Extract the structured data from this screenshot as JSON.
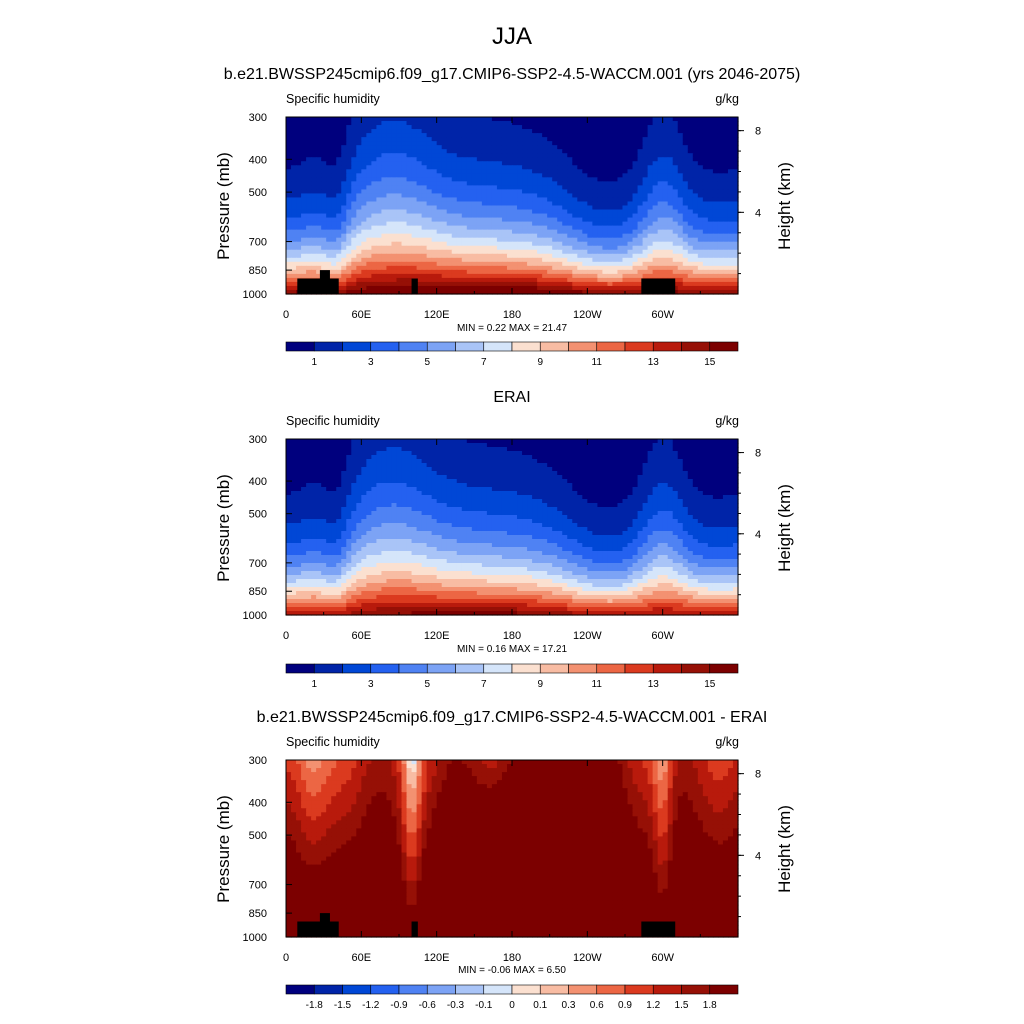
{
  "figure": {
    "title": "JJA"
  },
  "chart_data": [
    {
      "type": "heatmap",
      "title": "b.e21.BWSSP245cmip6.f09_g17.CMIP6-SSP2-4.5-WACCM.001 (yrs 2046-2075)",
      "variable": "Specific humidity",
      "units": "g/kg",
      "xlabel": "",
      "ylabel": "Pressure (mb)",
      "ylabel_right": "Height (km)",
      "x_ticks": [
        "0",
        "60E",
        "120E",
        "180",
        "120W",
        "60W"
      ],
      "x_tick_values": [
        0,
        60,
        120,
        180,
        240,
        300
      ],
      "xlim": [
        0,
        360
      ],
      "y_ticks": [
        "300",
        "400",
        "500",
        "700",
        "850",
        "1000"
      ],
      "y_tick_values": [
        300,
        400,
        500,
        700,
        850,
        1000
      ],
      "ylim": [
        1000,
        300
      ],
      "height_ticks": [
        "8",
        "4"
      ],
      "height_tick_values": [
        8,
        4
      ],
      "stats": "MIN =   0.22  MAX =  21.47",
      "levels": [
        1,
        2,
        3,
        4,
        5,
        6,
        7,
        8,
        9,
        10,
        11,
        12,
        13,
        14,
        15
      ],
      "colorbar_labels": [
        "1",
        "3",
        "5",
        "7",
        "9",
        "11",
        "13",
        "15"
      ],
      "has_terrain": true,
      "field_scale": 1.0
    },
    {
      "type": "heatmap",
      "title": "ERAI",
      "variable": "Specific humidity",
      "units": "g/kg",
      "xlabel": "",
      "ylabel": "Pressure (mb)",
      "ylabel_right": "Height (km)",
      "x_ticks": [
        "0",
        "60E",
        "120E",
        "180",
        "120W",
        "60W"
      ],
      "x_tick_values": [
        0,
        60,
        120,
        180,
        240,
        300
      ],
      "xlim": [
        0,
        360
      ],
      "y_ticks": [
        "300",
        "400",
        "500",
        "700",
        "850",
        "1000"
      ],
      "y_tick_values": [
        300,
        400,
        500,
        700,
        850,
        1000
      ],
      "ylim": [
        1000,
        300
      ],
      "height_ticks": [
        "8",
        "4"
      ],
      "height_tick_values": [
        8,
        4
      ],
      "stats": "MIN =   0.16  MAX =  17.21",
      "levels": [
        1,
        2,
        3,
        4,
        5,
        6,
        7,
        8,
        9,
        10,
        11,
        12,
        13,
        14,
        15
      ],
      "colorbar_labels": [
        "1",
        "3",
        "5",
        "7",
        "9",
        "11",
        "13",
        "15"
      ],
      "has_terrain": false,
      "field_scale": 0.92
    },
    {
      "type": "heatmap",
      "title": "b.e21.BWSSP245cmip6.f09_g17.CMIP6-SSP2-4.5-WACCM.001 - ERAI",
      "variable": "Specific humidity",
      "units": "g/kg",
      "xlabel": "",
      "ylabel": "Pressure (mb)",
      "ylabel_right": "Height (km)",
      "x_ticks": [
        "0",
        "60E",
        "120E",
        "180",
        "120W",
        "60W"
      ],
      "x_tick_values": [
        0,
        60,
        120,
        180,
        240,
        300
      ],
      "xlim": [
        0,
        360
      ],
      "y_ticks": [
        "300",
        "400",
        "500",
        "700",
        "850",
        "1000"
      ],
      "y_tick_values": [
        300,
        400,
        500,
        700,
        850,
        1000
      ],
      "ylim": [
        1000,
        300
      ],
      "height_ticks": [
        "8",
        "4"
      ],
      "height_tick_values": [
        8,
        4
      ],
      "stats": "MIN =  -0.06  MAX =   6.50",
      "levels": [
        -1.8,
        -1.5,
        -1.2,
        -0.9,
        -0.6,
        -0.3,
        -0.1,
        0,
        0.1,
        0.3,
        0.6,
        0.9,
        1.2,
        1.5,
        1.8
      ],
      "colorbar_labels": [
        "-1.8",
        "-1.5",
        "-1.2",
        "-0.9",
        "-0.6",
        "-0.3",
        "-0.1",
        "0",
        "0.1",
        "0.3",
        "0.6",
        "0.9",
        "1.2",
        "1.5",
        "1.8"
      ],
      "has_terrain": true,
      "is_difference": true
    }
  ],
  "colors": {
    "palette": [
      "#00007e",
      "#0024a8",
      "#0047d6",
      "#2461f0",
      "#4f82f3",
      "#7ca3f5",
      "#a9c4f7",
      "#d5e5fa",
      "#fbe0d0",
      "#f8bca3",
      "#f39171",
      "#ec6644",
      "#db3a1f",
      "#b81a0c",
      "#961006",
      "#7c0000"
    ],
    "terrain": "#000000"
  }
}
